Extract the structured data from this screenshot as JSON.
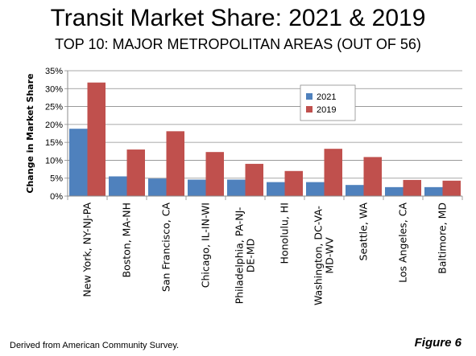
{
  "header": {
    "title": "Transit Market Share: 2021 & 2019",
    "subtitle": "TOP 10: MAJOR METROPOLITAN AREAS (OUT OF 56)"
  },
  "footer": {
    "source": "Derived from American Community Survey.",
    "figure": "Figure 6"
  },
  "colors": {
    "series_2021": "#4f81bd",
    "series_2019": "#c0504d"
  },
  "chart_data": {
    "type": "bar",
    "ylabel": "Change in Market Share",
    "ylim": [
      0,
      35
    ],
    "yticks": [
      "0%",
      "5%",
      "10%",
      "15%",
      "20%",
      "25%",
      "30%",
      "35%"
    ],
    "grid": true,
    "legend": "top-right",
    "categories": [
      [
        "New York, NY-NJ-PA"
      ],
      [
        "Boston, MA-NH"
      ],
      [
        "San Francisco, CA"
      ],
      [
        "Chicago, IL-IN-WI"
      ],
      [
        "Philadelphia, PA-NJ-",
        "DE-MD"
      ],
      [
        "Honolulu, HI"
      ],
      [
        "Washington, DC-VA-",
        "MD-WV"
      ],
      [
        "Seattle, WA"
      ],
      [
        "Los Angeles, CA"
      ],
      [
        "Baltimore, MD"
      ]
    ],
    "series": [
      {
        "name": "2021",
        "values": [
          18.8,
          5.5,
          4.9,
          4.6,
          4.6,
          3.9,
          3.9,
          3.1,
          2.5,
          2.5
        ]
      },
      {
        "name": "2019",
        "values": [
          31.7,
          13.0,
          18.1,
          12.3,
          9.0,
          7.0,
          13.2,
          10.9,
          4.5,
          4.3
        ]
      }
    ]
  }
}
